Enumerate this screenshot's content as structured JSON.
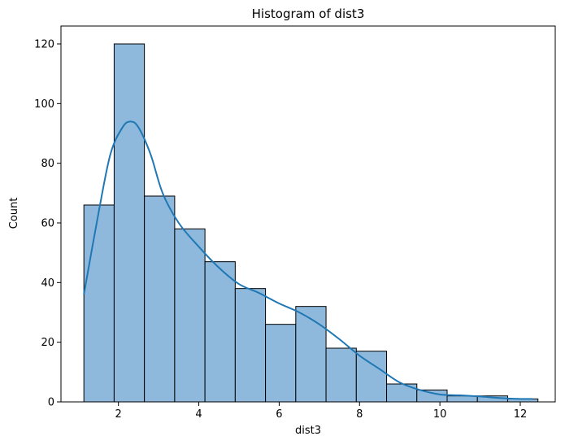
{
  "chart_data": {
    "type": "bar",
    "title": "Histogram of dist3",
    "xlabel": "dist3",
    "ylabel": "Count",
    "xlim": [
      0.57,
      12.87
    ],
    "ylim": [
      0,
      126
    ],
    "xticks": [
      2,
      4,
      6,
      8,
      10,
      12
    ],
    "yticks": [
      0,
      20,
      40,
      60,
      80,
      100,
      120
    ],
    "bin_start": 1.14,
    "bin_width": 0.7533,
    "values": [
      66,
      120,
      69,
      58,
      47,
      38,
      26,
      32,
      18,
      17,
      6,
      4,
      2,
      2,
      1
    ],
    "kde_curve": {
      "x": [
        1.14,
        1.5,
        1.8,
        2.1,
        2.3,
        2.5,
        2.8,
        3.1,
        3.5,
        4.0,
        4.5,
        5.0,
        5.5,
        6.0,
        6.5,
        7.0,
        7.5,
        8.0,
        8.5,
        9.0,
        9.5,
        10.0,
        10.5,
        11.0,
        11.5,
        12.0,
        12.3
      ],
      "y": [
        36,
        63,
        83,
        92,
        94,
        92,
        83,
        70,
        60,
        52,
        45,
        39.5,
        36.5,
        33,
        30,
        26,
        21,
        15.5,
        11,
        6.5,
        4,
        2.5,
        2.2,
        1.8,
        1.3,
        1,
        1
      ]
    },
    "grid": false,
    "colors": {
      "bar_fill": "#8fb9dc",
      "bar_edge": "#000000",
      "kde_line": "#1f77b4"
    }
  }
}
